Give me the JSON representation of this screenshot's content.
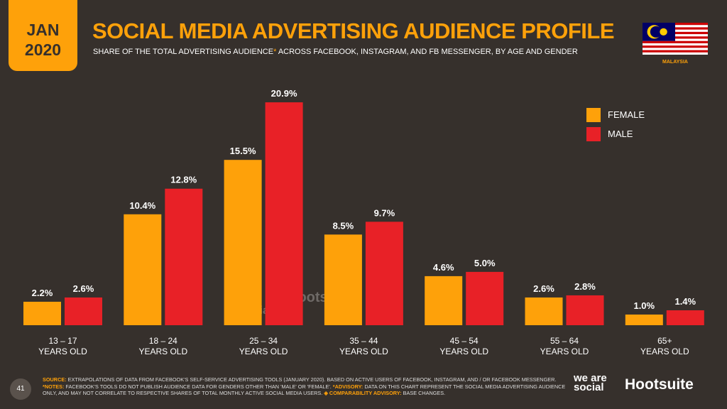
{
  "header": {
    "date_line1": "JAN",
    "date_line2": "2020",
    "title": "SOCIAL MEDIA ADVERTISING AUDIENCE PROFILE",
    "subtitle": "SHARE OF THE TOTAL ADVERTISING AUDIENCE",
    "subtitle_asterisk": "*",
    "subtitle_rest": " ACROSS FACEBOOK, INSTAGRAM, AND FB MESSENGER, BY AGE AND GENDER",
    "country": "MALAYSIA"
  },
  "colors": {
    "female": "#fea10a",
    "male": "#e82127",
    "background": "#36302c"
  },
  "chart_data": {
    "type": "bar",
    "categories": [
      "13 – 17|YEARS OLD",
      "18 – 24|YEARS OLD",
      "25 – 34|YEARS OLD",
      "35 – 44|YEARS OLD",
      "45 – 54|YEARS OLD",
      "55 – 64|YEARS OLD",
      "65+|YEARS OLD"
    ],
    "series": [
      {
        "name": "FEMALE",
        "values": [
          2.2,
          10.4,
          15.5,
          8.5,
          4.6,
          2.6,
          1.0
        ],
        "labels": [
          "2.2%",
          "10.4%",
          "15.5%",
          "8.5%",
          "4.6%",
          "2.6%",
          "1.0%"
        ]
      },
      {
        "name": "MALE",
        "values": [
          2.6,
          12.8,
          20.9,
          9.7,
          5.0,
          2.8,
          1.4
        ],
        "labels": [
          "2.6%",
          "12.8%",
          "20.9%",
          "9.7%",
          "5.0%",
          "2.8%",
          "1.4%"
        ]
      }
    ],
    "legend": "top-right",
    "grid": false
  },
  "footer": {
    "source_label": "SOURCE:",
    "source": " EXTRAPOLATIONS OF DATA FROM FACEBOOK'S SELF-SERVICE ADVERTISING TOOLS (JANUARY 2020). BASED ON ACTIVE USERS OF FACEBOOK, INSTAGRAM, AND / OR FACEBOOK MESSENGER. ",
    "notes_label": "*NOTES:",
    "notes": " FACEBOOK'S TOOLS DO NOT PUBLISH AUDIENCE DATA FOR GENDERS OTHER THAN 'MALE' OR 'FEMALE'. ",
    "advisory_label": "*ADVISORY:",
    "advisory": " DATA ON THIS CHART REPRESENT THE SOCIAL MEDIA ADVERTISING AUDIENCE ONLY, AND MAY NOT CORRELATE TO RESPECTIVE SHARES OF TOTAL MONTHLY ACTIVE SOCIAL MEDIA USERS. ",
    "comparability_label": "◈ COMPARABILITY ADVISORY:",
    "comparability": " BASE CHANGES.",
    "page": "41",
    "brand1": "we are social",
    "brand2": "Hootsuite"
  }
}
